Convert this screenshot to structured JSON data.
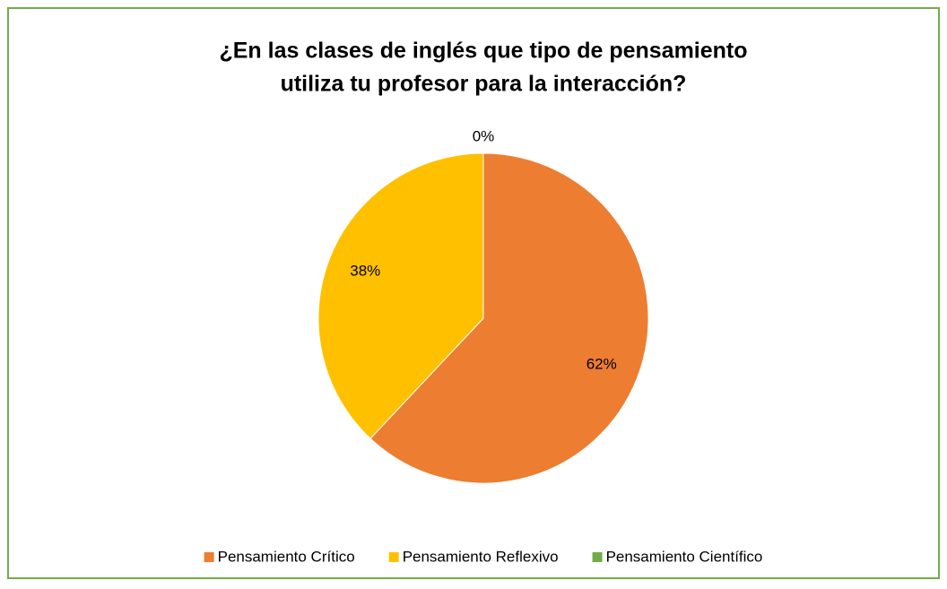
{
  "chart_data": {
    "type": "pie",
    "title": [
      "¿En las clases de inglés que tipo de pensamiento",
      "utiliza tu profesor para la interacción?"
    ],
    "categories": [
      "Pensamiento Crítico",
      "Pensamiento Reflexivo",
      "Pensamiento Científico"
    ],
    "values": [
      62,
      38,
      0
    ],
    "value_labels": [
      "62%",
      "38%",
      "0%"
    ],
    "colors": [
      "#ED7D31",
      "#FFC000",
      "#70AD47"
    ],
    "legend": "bottom"
  }
}
